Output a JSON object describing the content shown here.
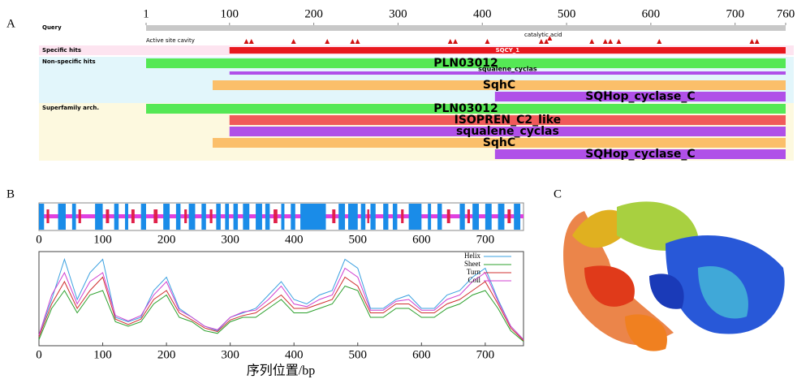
{
  "a": {
    "label": "A",
    "range": [
      1,
      760
    ],
    "ticks": [
      1,
      100,
      200,
      300,
      400,
      500,
      600,
      700,
      760
    ],
    "sections": [
      {
        "label": "Query",
        "color": "#ffffff"
      },
      {
        "label": "Specific hits",
        "color": "#fde4f0"
      },
      {
        "label": "Non-specific hits",
        "color": "#e2f6fb"
      },
      {
        "label": "Superfamily arch.",
        "color": "#fdf9df"
      }
    ],
    "sites": {
      "label": "Active site cavity",
      "positions": [
        120,
        126,
        176,
        216,
        246,
        252,
        362,
        368,
        406,
        470,
        476,
        530,
        546,
        552,
        562,
        610,
        720,
        726
      ]
    },
    "catalytic": {
      "label": "catalytic acid",
      "position": 480
    },
    "hits": [
      {
        "name": "SQCY_1",
        "start": 100,
        "end": 760,
        "color": "#e8181e"
      },
      {
        "name": "PLN03012",
        "start": 1,
        "end": 760,
        "color": "#55e855"
      },
      {
        "name": "squalene_cyclas",
        "start": 100,
        "end": 760,
        "color": "#b050e8"
      },
      {
        "name": "SqhC",
        "start": 80,
        "end": 760,
        "color": "#fbbf6a"
      },
      {
        "name": "SQHop_cyclase_C",
        "start": 415,
        "end": 760,
        "color": "#b050e8"
      },
      {
        "name": "PLN03012",
        "start": 1,
        "end": 760,
        "color": "#55e855"
      },
      {
        "name": "ISOPREN_C2_like",
        "start": 100,
        "end": 760,
        "color": "#f05a5a"
      },
      {
        "name": "squalene_cyclas",
        "start": 100,
        "end": 760,
        "color": "#b050e8"
      },
      {
        "name": "SqhC",
        "start": 80,
        "end": 760,
        "color": "#fbbf6a"
      },
      {
        "name": "SQHop_cyclase_C",
        "start": 415,
        "end": 760,
        "color": "#b050e8"
      }
    ]
  },
  "b": {
    "label": "B",
    "xlim": [
      0,
      760
    ],
    "xticks": [
      0,
      100,
      200,
      300,
      400,
      500,
      600,
      700
    ],
    "xlabel": "序列位置/bp",
    "helix_segments": [
      [
        0,
        8
      ],
      [
        30,
        42
      ],
      [
        52,
        58
      ],
      [
        88,
        100
      ],
      [
        118,
        125
      ],
      [
        135,
        140
      ],
      [
        160,
        168
      ],
      [
        195,
        205
      ],
      [
        215,
        222
      ],
      [
        235,
        245
      ],
      [
        255,
        262
      ],
      [
        278,
        285
      ],
      [
        292,
        298
      ],
      [
        305,
        312
      ],
      [
        320,
        330
      ],
      [
        340,
        350
      ],
      [
        355,
        362
      ],
      [
        380,
        385
      ],
      [
        395,
        402
      ],
      [
        410,
        450
      ],
      [
        470,
        480
      ],
      [
        485,
        500
      ],
      [
        505,
        512
      ],
      [
        520,
        528
      ],
      [
        540,
        548
      ],
      [
        555,
        562
      ],
      [
        580,
        600
      ],
      [
        610,
        615
      ],
      [
        625,
        632
      ],
      [
        660,
        668
      ],
      [
        680,
        690
      ],
      [
        700,
        710
      ],
      [
        720,
        730
      ],
      [
        745,
        755
      ]
    ],
    "sheet_segments": [
      [
        12,
        16
      ],
      [
        62,
        66
      ],
      [
        105,
        110
      ],
      [
        145,
        150
      ],
      [
        180,
        186
      ],
      [
        228,
        232
      ],
      [
        268,
        272
      ],
      [
        368,
        374
      ],
      [
        460,
        465
      ],
      [
        515,
        518
      ],
      [
        568,
        572
      ],
      [
        640,
        645
      ],
      [
        672,
        676
      ],
      [
        735,
        740
      ]
    ],
    "profile": {
      "ylim": [
        0,
        1
      ],
      "x": [
        0,
        20,
        40,
        60,
        80,
        100,
        120,
        140,
        160,
        180,
        200,
        220,
        240,
        260,
        280,
        300,
        320,
        340,
        360,
        380,
        400,
        420,
        440,
        460,
        480,
        500,
        520,
        540,
        560,
        580,
        600,
        620,
        640,
        660,
        680,
        700,
        720,
        740,
        760
      ],
      "series": [
        {
          "name": "Helix",
          "color": "#3aa0e0",
          "values": [
            0.1,
            0.5,
            0.95,
            0.5,
            0.8,
            0.95,
            0.3,
            0.25,
            0.3,
            0.6,
            0.75,
            0.4,
            0.3,
            0.2,
            0.15,
            0.3,
            0.35,
            0.4,
            0.55,
            0.7,
            0.5,
            0.45,
            0.55,
            0.6,
            0.95,
            0.85,
            0.4,
            0.4,
            0.5,
            0.55,
            0.4,
            0.4,
            0.55,
            0.6,
            0.75,
            0.85,
            0.5,
            0.2,
            0.05
          ]
        },
        {
          "name": "Sheet",
          "color": "#2ca02c",
          "values": [
            0.05,
            0.4,
            0.6,
            0.35,
            0.55,
            0.6,
            0.25,
            0.2,
            0.25,
            0.45,
            0.55,
            0.3,
            0.25,
            0.15,
            0.12,
            0.25,
            0.3,
            0.3,
            0.4,
            0.5,
            0.35,
            0.35,
            0.4,
            0.45,
            0.65,
            0.6,
            0.3,
            0.3,
            0.4,
            0.4,
            0.3,
            0.3,
            0.4,
            0.45,
            0.55,
            0.6,
            0.4,
            0.15,
            0.03
          ]
        },
        {
          "name": "Turn",
          "color": "#d03030",
          "values": [
            0.08,
            0.45,
            0.7,
            0.4,
            0.6,
            0.75,
            0.28,
            0.22,
            0.28,
            0.5,
            0.6,
            0.35,
            0.27,
            0.18,
            0.14,
            0.27,
            0.32,
            0.35,
            0.45,
            0.55,
            0.4,
            0.4,
            0.45,
            0.5,
            0.75,
            0.65,
            0.35,
            0.35,
            0.45,
            0.45,
            0.35,
            0.35,
            0.45,
            0.5,
            0.6,
            0.7,
            0.45,
            0.18,
            0.04
          ]
        },
        {
          "name": "Coil",
          "color": "#d040d0",
          "values": [
            0.1,
            0.55,
            0.8,
            0.45,
            0.7,
            0.8,
            0.32,
            0.26,
            0.32,
            0.55,
            0.7,
            0.38,
            0.3,
            0.2,
            0.16,
            0.3,
            0.36,
            0.38,
            0.5,
            0.65,
            0.45,
            0.42,
            0.5,
            0.55,
            0.85,
            0.75,
            0.38,
            0.38,
            0.48,
            0.5,
            0.38,
            0.38,
            0.5,
            0.55,
            0.7,
            0.8,
            0.48,
            0.2,
            0.05
          ]
        }
      ]
    }
  },
  "c": {
    "label": "C"
  }
}
